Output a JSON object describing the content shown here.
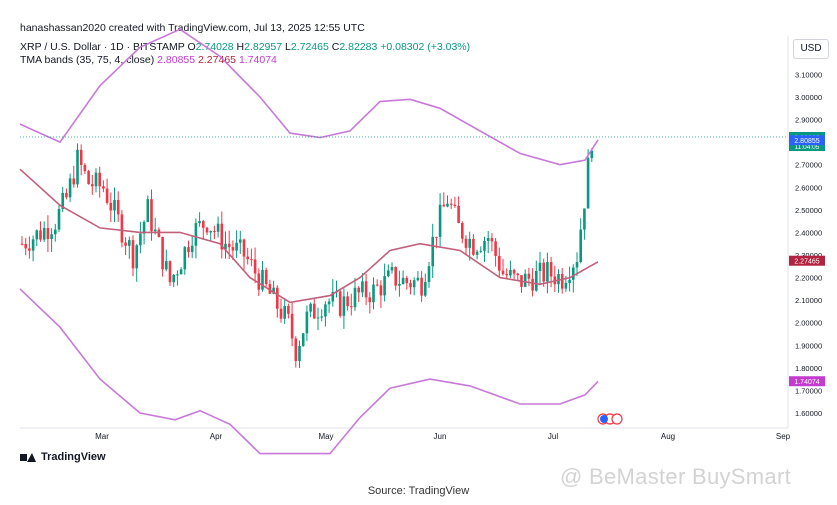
{
  "header": {
    "credit": "hanashassan2020 created with TradingView.com, Jul 13, 2025 12:55 UTC",
    "symbol": "XRP / U.S. Dollar · 1D · BITSTAMP",
    "ohlc": {
      "o_label": "O",
      "o": "2.74028",
      "h_label": "H",
      "h": "2.82957",
      "l_label": "L",
      "l": "2.72465",
      "c_label": "C",
      "c": "2.82283",
      "chg": "+0.08302 (+3.03%)"
    },
    "indicator": {
      "label": "TMA bands (35, 75, 4, close)",
      "upper": "2.80855",
      "mid": "2.27465",
      "lower": "1.74074"
    },
    "currency_button": "USD"
  },
  "chart_data": {
    "type": "candlestick",
    "series": [
      {
        "name": "XRP / U.S. Dollar",
        "kind": "candles"
      },
      {
        "name": "TMA bands",
        "kind": "bands"
      }
    ],
    "y_axis": {
      "ticks": [
        "3.10000",
        "3.00000",
        "2.90000",
        "2.80000",
        "2.70000",
        "2.60000",
        "2.50000",
        "2.40000",
        "2.30000",
        "2.20000",
        "2.10000",
        "2.00000",
        "1.90000",
        "1.80000",
        "1.70000",
        "1.60000"
      ],
      "range": [
        1.53,
        3.18
      ]
    },
    "x_axis": {
      "ticks": [
        "Mar",
        "Apr",
        "May",
        "Jun",
        "Jul",
        "Aug",
        "Sep"
      ]
    },
    "price_labels": [
      {
        "value": "2.82283",
        "sub": "11:04:05",
        "color": "#089981",
        "y": 2.82283
      },
      {
        "value": "2.80855",
        "color": "#2962ff",
        "y": 2.80855
      },
      {
        "value": "2.27465",
        "color": "#b2233f",
        "y": 2.27465
      },
      {
        "value": "1.74074",
        "color": "#c33bd1",
        "y": 1.74074
      }
    ],
    "colors": {
      "up": "#089981",
      "down": "#f23645",
      "mid": "#c2607a",
      "band": "#c779d9",
      "last": "#089981"
    }
  },
  "footer": {
    "logo_text": "TradingView",
    "watermark": "@ BeMaster BuySmart",
    "source": "Source: TradingView"
  }
}
